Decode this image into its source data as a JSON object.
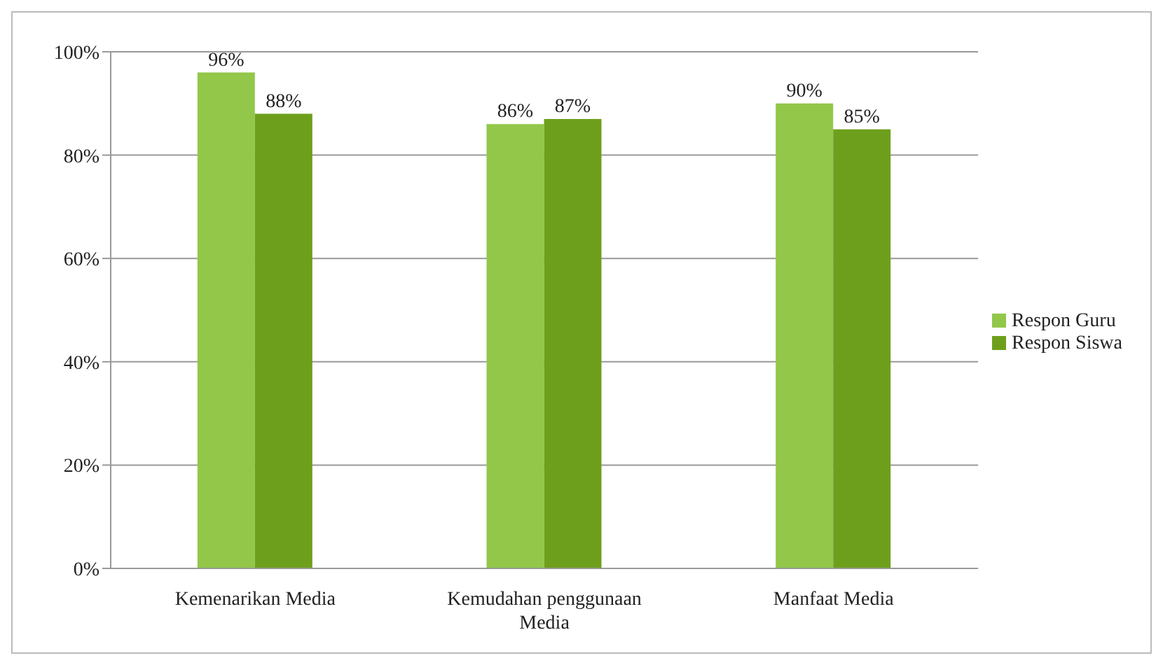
{
  "chart_data": {
    "type": "bar",
    "categories": [
      "Kemenarikan Media",
      "Kemudahan penggunaan Media",
      "Manfaat Media"
    ],
    "series": [
      {
        "name": "Respon Guru",
        "color": "#92c74a",
        "values": [
          96,
          86,
          90
        ],
        "value_labels": [
          "96%",
          "86%",
          "90%"
        ]
      },
      {
        "name": "Respon Siswa",
        "color": "#6e9f1c",
        "values": [
          88,
          87,
          85
        ],
        "value_labels": [
          "88%",
          "87%",
          "85%"
        ]
      }
    ],
    "ylim": [
      0,
      100
    ],
    "yticks": [
      {
        "value": 0,
        "label": "0%"
      },
      {
        "value": 20,
        "label": "20%"
      },
      {
        "value": 40,
        "label": "40%"
      },
      {
        "value": 60,
        "label": "60%"
      },
      {
        "value": 80,
        "label": "80%"
      },
      {
        "value": 100,
        "label": "100%"
      }
    ],
    "grid": "y",
    "legend": "right"
  }
}
